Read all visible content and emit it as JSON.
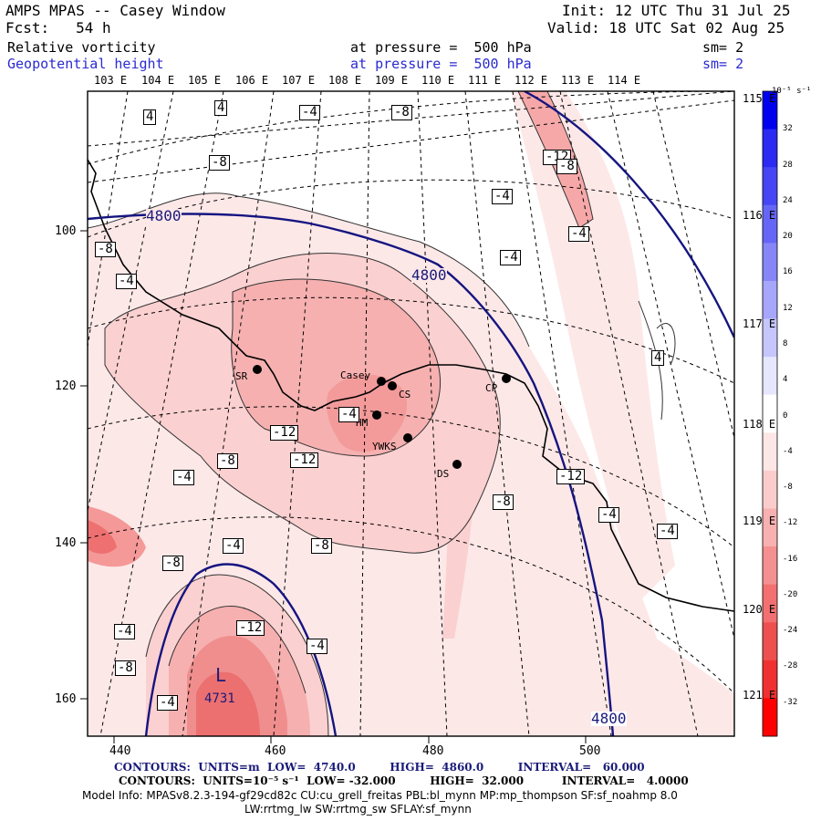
{
  "header": {
    "title": "AMPS MPAS -- Casey Window",
    "forecast": "Fcst:   54 h",
    "init": "Init: 12 UTC Thu 31 Jul 25",
    "valid": "Valid: 18 UTC Sat 02 Aug 25",
    "field1": {
      "name": "Relative vorticity",
      "level": "at pressure =  500 hPa",
      "smooth": "sm= 2"
    },
    "field2": {
      "name": "Geopotential height",
      "level": "at pressure =  500 hPa",
      "smooth": "sm= 2"
    }
  },
  "map": {
    "top_lon_labels": [
      "103 E",
      "104 E",
      "105 E",
      "106 E",
      "107 E",
      "108 E",
      "109 E",
      "110 E",
      "111 E",
      "112 E",
      "113 E",
      "114 E"
    ],
    "right_lon_labels": [
      "115 E",
      "116 E",
      "117 E",
      "118 E",
      "119 E",
      "120 E",
      "121 E"
    ],
    "x_ticks": [
      "440",
      "460",
      "480",
      "500"
    ],
    "y_ticks": [
      "100",
      "120",
      "140",
      "160"
    ],
    "stations": [
      {
        "id": "SR"
      },
      {
        "id": "Casey"
      },
      {
        "id": "CS"
      },
      {
        "id": "HM"
      },
      {
        "id": "YWKS"
      },
      {
        "id": "DS"
      },
      {
        "id": "CP"
      }
    ],
    "vorticity_labels": [
      "4",
      "4",
      "-4",
      "-8",
      "-12",
      "-4",
      "-8",
      "-4",
      "-4",
      "-4",
      "-4",
      "4",
      "-12",
      "-12",
      "-8",
      "-4",
      "-12",
      "-8",
      "-4",
      "-4",
      "-8",
      "-8",
      "-4",
      "-4",
      "-8",
      "-12",
      "-4",
      "-4",
      "-8",
      "-8"
    ],
    "height_labels": [
      "4800",
      "4800",
      "4800"
    ],
    "low": {
      "symbol": "L",
      "value": "4731"
    }
  },
  "colorbar": {
    "unit": "10⁻⁵ s⁻¹",
    "labels": [
      "32",
      "28",
      "24",
      "20",
      "16",
      "12",
      "8",
      "4",
      "0",
      "-4",
      "-8",
      "-12",
      "-16",
      "-20",
      "-24",
      "-28",
      "-32"
    ],
    "colors": [
      "#0000ee",
      "#2a2af2",
      "#4646f4",
      "#6666f6",
      "#8686f8",
      "#a6a6fa",
      "#c6c6fc",
      "#e6e6fe",
      "#ffffff",
      "#fde6e6",
      "#fbcccc",
      "#f8b0b0",
      "#f59090",
      "#f27070",
      "#ee5050",
      "#f03030",
      "#ff0000"
    ]
  },
  "footer": {
    "line1": "CONTOURS:  UNITS=m  LOW=  4740.0         HIGH=  4860.0         INTERVAL=   60.000",
    "line2": "CONTOURS:  UNITS=10⁻⁵ s⁻¹  LOW= -32.000         HIGH=  32.000          INTERVAL=   4.0000",
    "line3": "Model Info: MPASv8.2.3-194-gf29cd82c CU:cu_grell_freitas PBL:bl_mynn MP:mp_thompson SF:sf_noahmp 8.0",
    "line4": "LW:rrtmg_lw SW:rrtmg_sw SFLAY:sf_mynn"
  }
}
